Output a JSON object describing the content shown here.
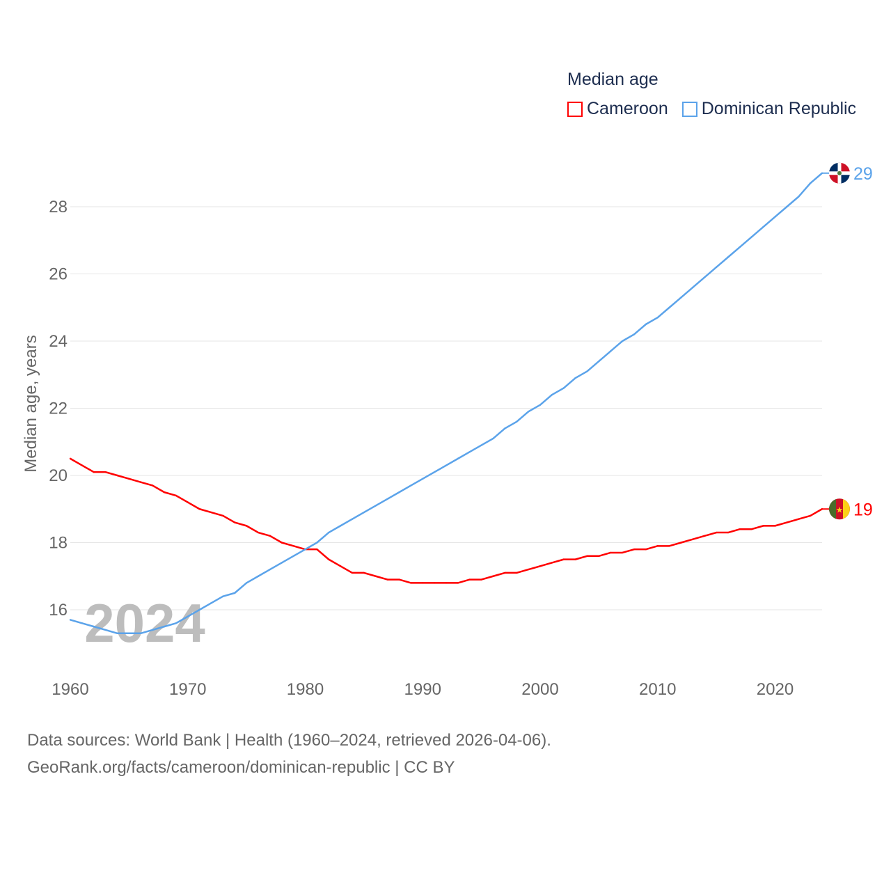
{
  "chart_data": {
    "type": "line",
    "title": "",
    "legend_title": "Median age",
    "legend_placement": "top-right",
    "xlabel": "",
    "ylabel": "Median age, years",
    "xlim": [
      1960,
      2024
    ],
    "ylim": [
      14.7,
      29.6
    ],
    "xticks": [
      1960,
      1970,
      1980,
      1990,
      2000,
      2010,
      2020
    ],
    "yticks": [
      16,
      18,
      20,
      22,
      24,
      26,
      28
    ],
    "grid": true,
    "year_overlay": "2024",
    "x": [
      1960,
      1961,
      1962,
      1963,
      1964,
      1965,
      1966,
      1967,
      1968,
      1969,
      1970,
      1971,
      1972,
      1973,
      1974,
      1975,
      1976,
      1977,
      1978,
      1979,
      1980,
      1981,
      1982,
      1983,
      1984,
      1985,
      1986,
      1987,
      1988,
      1989,
      1990,
      1991,
      1992,
      1993,
      1994,
      1995,
      1996,
      1997,
      1998,
      1999,
      2000,
      2001,
      2002,
      2003,
      2004,
      2005,
      2006,
      2007,
      2008,
      2009,
      2010,
      2011,
      2012,
      2013,
      2014,
      2015,
      2016,
      2017,
      2018,
      2019,
      2020,
      2021,
      2022,
      2023,
      2024
    ],
    "series": [
      {
        "name": "Cameroon",
        "color": "#ff0000",
        "end_label": "19",
        "values": [
          20.5,
          20.3,
          20.1,
          20.1,
          20.0,
          19.9,
          19.8,
          19.7,
          19.5,
          19.4,
          19.2,
          19.0,
          18.9,
          18.8,
          18.6,
          18.5,
          18.3,
          18.2,
          18.0,
          17.9,
          17.8,
          17.8,
          17.5,
          17.3,
          17.1,
          17.1,
          17.0,
          16.9,
          16.9,
          16.8,
          16.8,
          16.8,
          16.8,
          16.8,
          16.9,
          16.9,
          17.0,
          17.1,
          17.1,
          17.2,
          17.3,
          17.4,
          17.5,
          17.5,
          17.6,
          17.6,
          17.7,
          17.7,
          17.8,
          17.8,
          17.9,
          17.9,
          18.0,
          18.1,
          18.2,
          18.3,
          18.3,
          18.4,
          18.4,
          18.5,
          18.5,
          18.6,
          18.7,
          18.8,
          19.0
        ]
      },
      {
        "name": "Dominican Republic",
        "color": "#5ba3ea",
        "end_label": "29",
        "values": [
          15.7,
          15.6,
          15.5,
          15.4,
          15.3,
          15.3,
          15.3,
          15.4,
          15.5,
          15.6,
          15.8,
          16.0,
          16.2,
          16.4,
          16.5,
          16.8,
          17.0,
          17.2,
          17.4,
          17.6,
          17.8,
          18.0,
          18.3,
          18.5,
          18.7,
          18.9,
          19.1,
          19.3,
          19.5,
          19.7,
          19.9,
          20.1,
          20.3,
          20.5,
          20.7,
          20.9,
          21.1,
          21.4,
          21.6,
          21.9,
          22.1,
          22.4,
          22.6,
          22.9,
          23.1,
          23.4,
          23.7,
          24.0,
          24.2,
          24.5,
          24.7,
          25.0,
          25.3,
          25.6,
          25.9,
          26.2,
          26.5,
          26.8,
          27.1,
          27.4,
          27.7,
          28.0,
          28.3,
          28.7,
          29.0
        ]
      }
    ]
  },
  "footer": {
    "line1": "Data sources: World Bank | Health (1960–2024, retrieved 2026-04-06).",
    "line2": "GeoRank.org/facts/cameroon/dominican-republic | CC BY"
  }
}
